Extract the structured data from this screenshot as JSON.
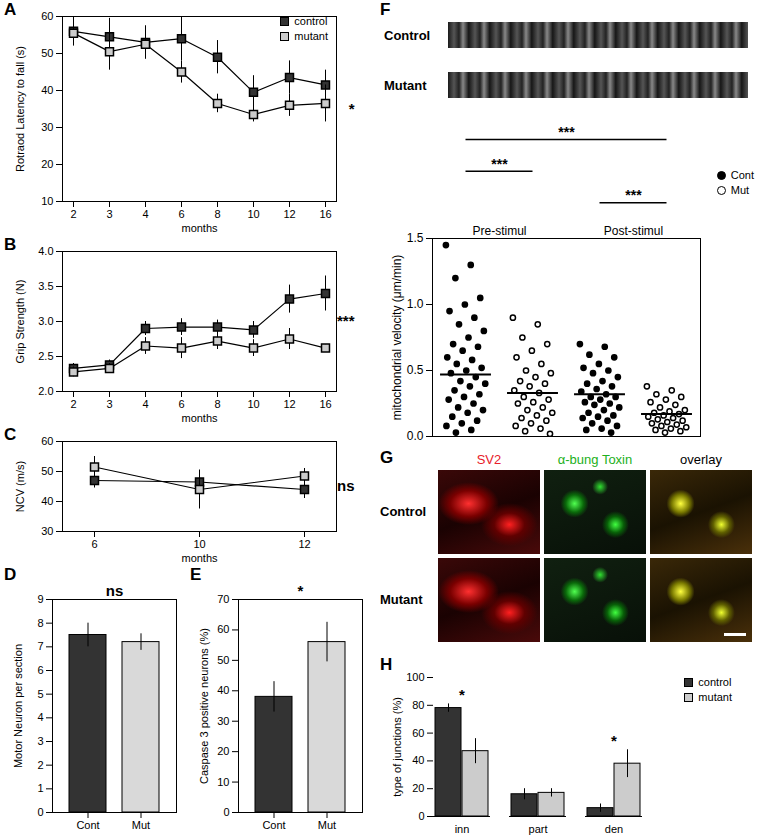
{
  "chart_data": [
    {
      "panel": "A",
      "type": "line",
      "x_label": "months",
      "y_label": "Rotraod Latency to fall (s)",
      "categories": [
        2,
        3,
        4,
        6,
        8,
        10,
        12,
        16
      ],
      "series": [
        {
          "name": "control",
          "color": "#333333",
          "marker": "square",
          "values": [
            56,
            54.5,
            53,
            54,
            49,
            39.5,
            43.5,
            41.5
          ],
          "errors": [
            4,
            5,
            4.5,
            6,
            4.5,
            4.5,
            4.5,
            4
          ]
        },
        {
          "name": "mutant",
          "color": "#cccccc",
          "marker": "square",
          "values": [
            55.5,
            50.5,
            52.5,
            45,
            36.5,
            33.5,
            36,
            36.5
          ],
          "errors": [
            3,
            5,
            4,
            3,
            2.5,
            2,
            3,
            5
          ]
        }
      ],
      "ylim": [
        10,
        60
      ],
      "yticks": [
        10,
        20,
        30,
        40,
        50,
        60
      ],
      "legend": "top-right",
      "significance": "*"
    },
    {
      "panel": "B",
      "type": "line",
      "x_label": "months",
      "y_label": "Grip Strength (N)",
      "categories": [
        2,
        3,
        4,
        6,
        8,
        10,
        12,
        16
      ],
      "series": [
        {
          "name": "control",
          "color": "#333333",
          "marker": "square",
          "values": [
            2.33,
            2.38,
            2.9,
            2.92,
            2.92,
            2.88,
            3.32,
            3.4
          ],
          "errors": [
            0.07,
            0.07,
            0.1,
            0.12,
            0.1,
            0.12,
            0.2,
            0.25
          ]
        },
        {
          "name": "mutant",
          "color": "#cccccc",
          "marker": "square",
          "values": [
            2.28,
            2.33,
            2.65,
            2.62,
            2.72,
            2.62,
            2.75,
            2.62
          ],
          "errors": [
            0.07,
            0.07,
            0.12,
            0.15,
            0.12,
            0.12,
            0.15,
            0.05
          ]
        }
      ],
      "ylim": [
        2,
        4
      ],
      "yticks": [
        2,
        2.5,
        3,
        3.5,
        4
      ],
      "significance": "***"
    },
    {
      "panel": "C",
      "type": "line",
      "x_label": "months",
      "y_label": "NCV (m/s)",
      "categories": [
        6,
        10,
        12
      ],
      "series": [
        {
          "name": "control",
          "color": "#333333",
          "marker": "square",
          "values": [
            47,
            46.5,
            44
          ],
          "errors": [
            2.5,
            3,
            3
          ]
        },
        {
          "name": "mutant",
          "color": "#cccccc",
          "marker": "square",
          "values": [
            51.5,
            44,
            48.5
          ],
          "errors": [
            3.5,
            6.5,
            2.5
          ]
        }
      ],
      "ylim": [
        30,
        60
      ],
      "yticks": [
        30,
        40,
        50,
        60
      ],
      "significance": "ns"
    },
    {
      "panel": "D",
      "type": "bar",
      "y_label": "Motor Neuron per section",
      "categories": [
        "Cont",
        "Mut"
      ],
      "values": [
        7.5,
        7.2
      ],
      "errors": [
        0.5,
        0.35
      ],
      "colors": [
        "#333333",
        "#d9d9d9"
      ],
      "ylim": [
        0,
        9
      ],
      "yticks": [
        0,
        1,
        2,
        3,
        4,
        5,
        6,
        7,
        8,
        9
      ],
      "significance": "ns"
    },
    {
      "panel": "E",
      "type": "bar",
      "y_label": "Caspase 3 positive neurons (%)",
      "categories": [
        "Cont",
        "Mut"
      ],
      "values": [
        38,
        56
      ],
      "errors": [
        5,
        6.5
      ],
      "colors": [
        "#333333",
        "#d9d9d9"
      ],
      "ylim": [
        0,
        70
      ],
      "yticks": [
        0,
        10,
        20,
        30,
        40,
        50,
        60,
        70
      ],
      "significance": "*"
    },
    {
      "panel": "F",
      "type": "scatter",
      "kymograph_labels": [
        "Control",
        "Mutant"
      ],
      "y_label": "mitochondrial velocity (μm/min)",
      "conditions": [
        "Pre-stimul",
        "Post-stimul"
      ],
      "series": [
        {
          "name": "Cont",
          "color": "#000000",
          "marker": "circle"
        },
        {
          "name": "Mut",
          "color": "#000000",
          "marker": "open_circle"
        }
      ],
      "groups": [
        {
          "condition": "Pre-stimul",
          "series": "Cont",
          "mean": 0.47,
          "values": [
            1.45,
            1.3,
            1.2,
            1.05,
            1.0,
            0.95,
            0.9,
            0.85,
            0.8,
            0.75,
            0.7,
            0.68,
            0.65,
            0.6,
            0.58,
            0.55,
            0.52,
            0.5,
            0.48,
            0.45,
            0.42,
            0.4,
            0.38,
            0.35,
            0.32,
            0.3,
            0.28,
            0.25,
            0.22,
            0.2,
            0.18,
            0.15,
            0.12,
            0.1,
            0.08,
            0.05,
            0.03
          ]
        },
        {
          "condition": "Pre-stimul",
          "series": "Mut",
          "mean": 0.33,
          "values": [
            0.9,
            0.85,
            0.75,
            0.7,
            0.65,
            0.6,
            0.55,
            0.5,
            0.48,
            0.45,
            0.42,
            0.4,
            0.38,
            0.35,
            0.33,
            0.3,
            0.28,
            0.26,
            0.25,
            0.22,
            0.2,
            0.18,
            0.16,
            0.14,
            0.12,
            0.1,
            0.08,
            0.06,
            0.04,
            0.02
          ]
        },
        {
          "condition": "Post-stimul",
          "series": "Cont",
          "mean": 0.32,
          "values": [
            0.7,
            0.68,
            0.62,
            0.6,
            0.55,
            0.52,
            0.5,
            0.48,
            0.45,
            0.42,
            0.4,
            0.38,
            0.36,
            0.34,
            0.32,
            0.3,
            0.3,
            0.28,
            0.26,
            0.25,
            0.24,
            0.22,
            0.2,
            0.18,
            0.16,
            0.15,
            0.14,
            0.12,
            0.1,
            0.08,
            0.06,
            0.05,
            0.03
          ]
        },
        {
          "condition": "Post-stimul",
          "series": "Mut",
          "mean": 0.17,
          "values": [
            0.38,
            0.35,
            0.32,
            0.3,
            0.28,
            0.26,
            0.24,
            0.22,
            0.2,
            0.19,
            0.18,
            0.17,
            0.16,
            0.15,
            0.14,
            0.13,
            0.12,
            0.11,
            0.1,
            0.09,
            0.08,
            0.07,
            0.06,
            0.05,
            0.04,
            0.03
          ]
        }
      ],
      "comparisons": [
        {
          "groups": [
            0,
            1
          ],
          "label": "***"
        },
        {
          "groups": [
            2,
            3
          ],
          "label": "***"
        },
        {
          "groups": [
            0,
            3
          ],
          "label": "***"
        }
      ],
      "ylim": [
        0,
        1.5
      ],
      "yticks": [
        0,
        0.5,
        1,
        1.5
      ],
      "legend": "top-right"
    },
    {
      "panel": "G",
      "type": "image",
      "column_labels": [
        "SV2",
        "α-bung Toxin",
        "overlay"
      ],
      "column_colors": [
        "#e8202a",
        "#22b020",
        "#000000"
      ],
      "row_labels": [
        "Control",
        "Mutant"
      ]
    },
    {
      "panel": "H",
      "type": "bar",
      "y_label": "type of junctions (%)",
      "categories": [
        "inn",
        "part",
        "den"
      ],
      "series": [
        {
          "name": "control",
          "color": "#333333",
          "values": [
            78,
            16,
            6
          ],
          "errors": [
            3,
            4,
            3
          ]
        },
        {
          "name": "mutant",
          "color": "#cccccc",
          "values": [
            47,
            17,
            38
          ],
          "errors": [
            9,
            3,
            10
          ]
        }
      ],
      "significance": [
        "*",
        null,
        "*"
      ],
      "ylim": [
        0,
        100
      ],
      "yticks": [
        0,
        20,
        40,
        60,
        80,
        100
      ],
      "legend": "top-right"
    }
  ]
}
